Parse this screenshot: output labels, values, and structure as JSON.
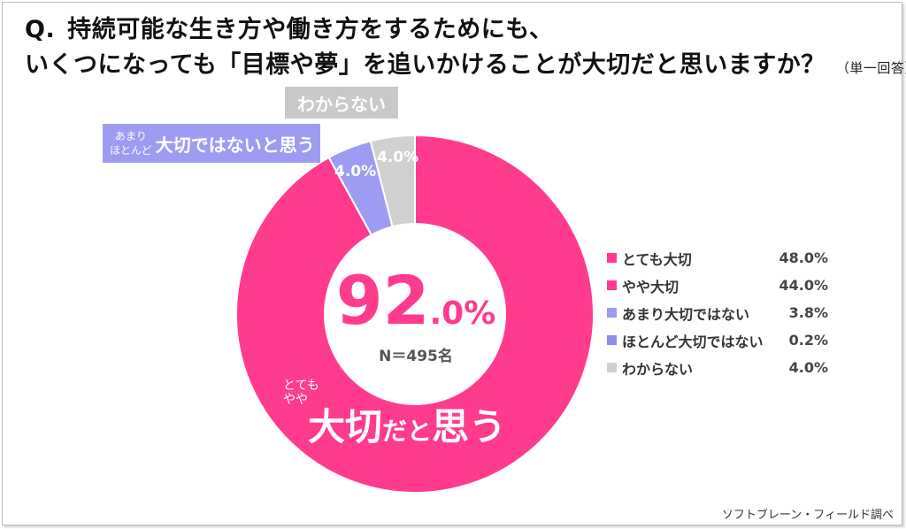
{
  "title": {
    "line1": "持続可能な生き方や働き方をするためにも、",
    "line2": "いくつになっても「目標や夢」を追いかけることが大切だと思いますか？",
    "q_prefix": "Q.",
    "note": "（単一回答）"
  },
  "center": {
    "percent_int": "92",
    "percent_dec": ".0%",
    "n_label": "N＝495名"
  },
  "callouts": {
    "dont_know": "わからない",
    "not_important_sub1": "あまり",
    "not_important_sub2": "ほとんど",
    "not_important_main": "大切ではないと思う",
    "important_sub1": "とても",
    "important_sub2": "やや",
    "important_main_a": "大切",
    "important_main_b": "だと",
    "important_main_c": "思う"
  },
  "slice_labels": {
    "purple": "4.0%",
    "gray": "4.0%"
  },
  "source": "ソフトブレーン・フィールド調べ",
  "chart_data": {
    "type": "pie",
    "donut": true,
    "categories": [
      "とても大切",
      "やや大切",
      "あまり大切ではない",
      "ほとんど大切ではない",
      "わからない"
    ],
    "values": [
      48.0,
      44.0,
      3.8,
      0.2,
      4.0
    ],
    "value_labels": [
      "48.0%",
      "44.0%",
      "3.8%",
      "0.2%",
      "4.0%"
    ],
    "colors": [
      "#ff3b8e",
      "#ff3b8e",
      "#9e9cf2",
      "#8f8de8",
      "#cfcfcf"
    ],
    "ring_segments": [
      {
        "value": 92.0,
        "color": "#ff3b8e"
      },
      {
        "value": 4.0,
        "color": "#9e9cf2"
      },
      {
        "value": 4.0,
        "color": "#d0d0d0"
      }
    ],
    "legend_position": "right",
    "n": 495
  }
}
